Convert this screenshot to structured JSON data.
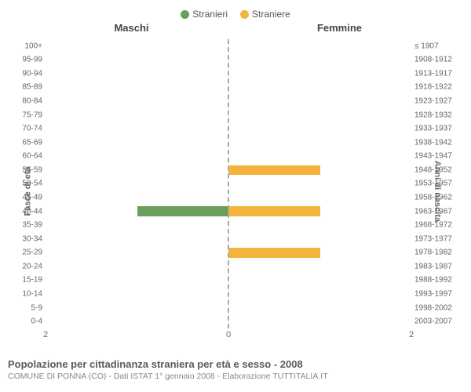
{
  "legend": {
    "items": [
      {
        "label": "Stranieri",
        "color": "#6a9e5c"
      },
      {
        "label": "Straniere",
        "color": "#f3b33d"
      }
    ]
  },
  "headers": {
    "left": "Maschi",
    "right": "Femmine"
  },
  "axis": {
    "left_title": "Fasce di età",
    "right_title": "Anni di nascita"
  },
  "chart": {
    "type": "bar-pyramid",
    "x_max": 2,
    "x_ticks": [
      2,
      0,
      2
    ],
    "male_color": "#6a9e5c",
    "female_color": "#f3b33d",
    "center_line_color": "#aaaa88",
    "background": "#ffffff",
    "label_color": "#666666",
    "label_fontsize": 10,
    "bar_height_ratio": 0.7,
    "rows": [
      {
        "age": "100+",
        "birth": "≤ 1907",
        "male": 0,
        "female": 0
      },
      {
        "age": "95-99",
        "birth": "1908-1912",
        "male": 0,
        "female": 0
      },
      {
        "age": "90-94",
        "birth": "1913-1917",
        "male": 0,
        "female": 0
      },
      {
        "age": "85-89",
        "birth": "1918-1922",
        "male": 0,
        "female": 0
      },
      {
        "age": "80-84",
        "birth": "1923-1927",
        "male": 0,
        "female": 0
      },
      {
        "age": "75-79",
        "birth": "1928-1932",
        "male": 0,
        "female": 0
      },
      {
        "age": "70-74",
        "birth": "1933-1937",
        "male": 0,
        "female": 0
      },
      {
        "age": "65-69",
        "birth": "1938-1942",
        "male": 0,
        "female": 0
      },
      {
        "age": "60-64",
        "birth": "1943-1947",
        "male": 0,
        "female": 0
      },
      {
        "age": "55-59",
        "birth": "1948-1952",
        "male": 0,
        "female": 1
      },
      {
        "age": "50-54",
        "birth": "1953-1957",
        "male": 0,
        "female": 0
      },
      {
        "age": "45-49",
        "birth": "1958-1962",
        "male": 0,
        "female": 0
      },
      {
        "age": "40-44",
        "birth": "1963-1967",
        "male": 1,
        "female": 1
      },
      {
        "age": "35-39",
        "birth": "1968-1972",
        "male": 0,
        "female": 0
      },
      {
        "age": "30-34",
        "birth": "1973-1977",
        "male": 0,
        "female": 0
      },
      {
        "age": "25-29",
        "birth": "1978-1982",
        "male": 0,
        "female": 1
      },
      {
        "age": "20-24",
        "birth": "1983-1987",
        "male": 0,
        "female": 0
      },
      {
        "age": "15-19",
        "birth": "1988-1992",
        "male": 0,
        "female": 0
      },
      {
        "age": "10-14",
        "birth": "1993-1997",
        "male": 0,
        "female": 0
      },
      {
        "age": "5-9",
        "birth": "1998-2002",
        "male": 0,
        "female": 0
      },
      {
        "age": "0-4",
        "birth": "2003-2007",
        "male": 0,
        "female": 0
      }
    ]
  },
  "footer": {
    "title": "Popolazione per cittadinanza straniera per età e sesso - 2008",
    "source": "COMUNE DI PONNA (CO) - Dati ISTAT 1° gennaio 2008 - Elaborazione TUTTITALIA.IT"
  }
}
